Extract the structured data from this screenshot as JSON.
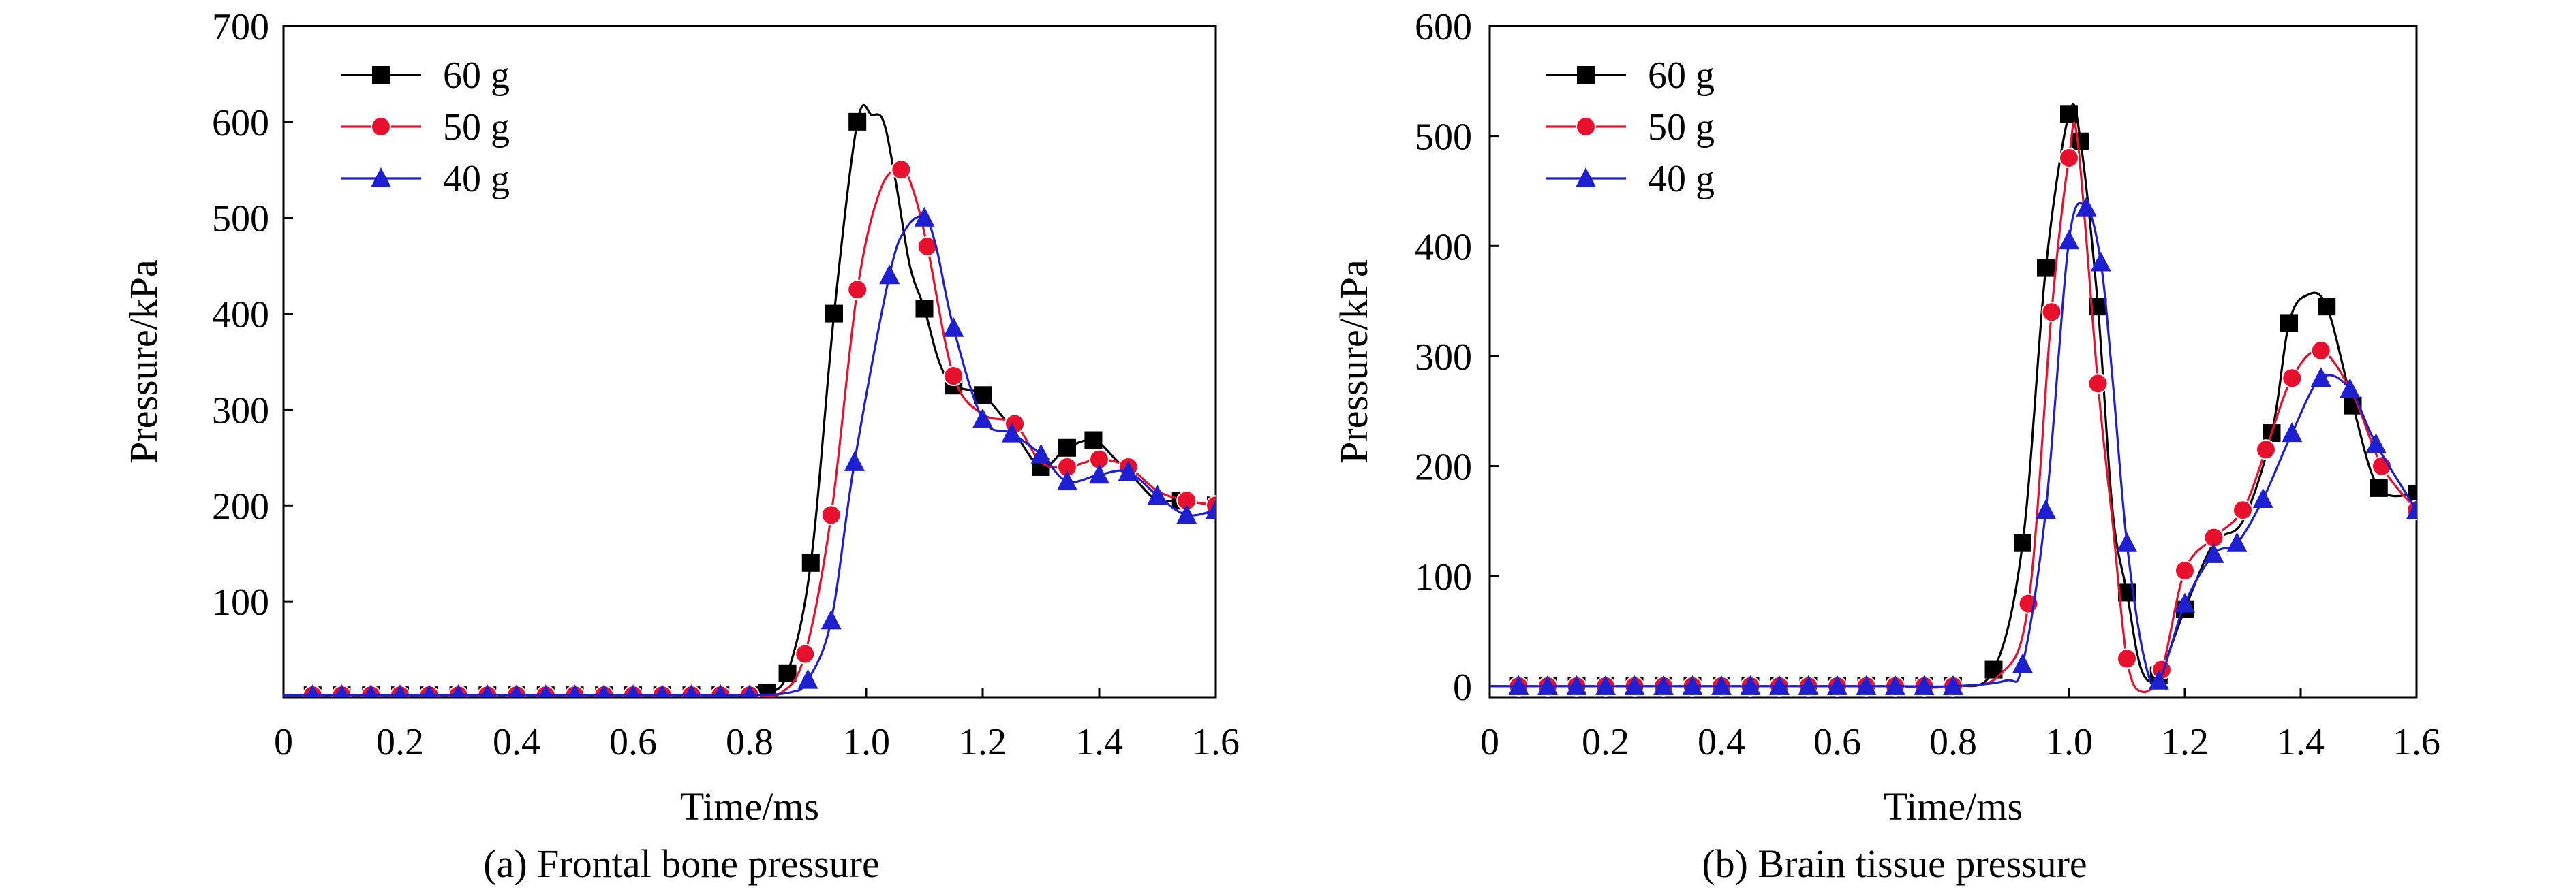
{
  "figure": {
    "captions": [
      "(a) Frontal bone pressure",
      "(b) Brain tissue pressure"
    ]
  },
  "chart_data": [
    {
      "type": "line",
      "caption": "(a) Frontal bone pressure",
      "xlabel": "Time/ms",
      "ylabel": "Pressure/kPa",
      "xlim": [
        0,
        1.6
      ],
      "ylim": [
        0,
        700
      ],
      "xticks": [
        "0",
        "0.2",
        "0.4",
        "0.6",
        "0.8",
        "1.0",
        "1.2",
        "1.4",
        "1.6"
      ],
      "yticks": [
        "100",
        "200",
        "300",
        "400",
        "500",
        "600",
        "700"
      ],
      "grid": false,
      "legend_position": "top-left",
      "series": [
        {
          "name": "60 g",
          "color": "#000000",
          "marker": "square",
          "x": [
            0.0,
            0.1,
            0.2,
            0.3,
            0.4,
            0.5,
            0.6,
            0.7,
            0.8,
            0.83,
            0.865,
            0.905,
            0.945,
            0.985,
            1.01,
            1.03,
            1.05,
            1.075,
            1.1,
            1.125,
            1.15,
            1.2,
            1.25,
            1.3,
            1.345,
            1.39,
            1.425,
            1.465,
            1.5,
            1.54,
            1.6
          ],
          "y": [
            2,
            2,
            2,
            2,
            2,
            2,
            2,
            2,
            2,
            5,
            25,
            140,
            400,
            600,
            607,
            600,
            540,
            450,
            405,
            350,
            325,
            315,
            280,
            240,
            260,
            268,
            250,
            225,
            205,
            205,
            200
          ],
          "marker_x": [
            0.83,
            0.865,
            0.905,
            0.945,
            0.985,
            1.1,
            1.15,
            1.2,
            1.3,
            1.345,
            1.39,
            1.54,
            1.6
          ],
          "marker_y": [
            5,
            25,
            140,
            400,
            600,
            405,
            325,
            315,
            240,
            260,
            268,
            205,
            200
          ]
        },
        {
          "name": "50 g",
          "color": "#e8112d",
          "marker": "circle",
          "x": [
            0.0,
            0.1,
            0.2,
            0.3,
            0.4,
            0.5,
            0.6,
            0.7,
            0.8,
            0.855,
            0.895,
            0.94,
            0.985,
            1.025,
            1.06,
            1.08,
            1.105,
            1.15,
            1.2,
            1.255,
            1.3,
            1.345,
            1.4,
            1.45,
            1.5,
            1.55,
            1.6
          ],
          "y": [
            2,
            2,
            2,
            2,
            2,
            2,
            2,
            2,
            2,
            5,
            45,
            190,
            425,
            530,
            550,
            530,
            470,
            335,
            295,
            285,
            245,
            240,
            248,
            240,
            215,
            205,
            200
          ],
          "marker_x": [
            0.895,
            0.94,
            0.985,
            1.06,
            1.105,
            1.15,
            1.255,
            1.345,
            1.4,
            1.45,
            1.55,
            1.6
          ],
          "marker_y": [
            45,
            190,
            425,
            550,
            470,
            335,
            285,
            240,
            248,
            240,
            205,
            200
          ]
        },
        {
          "name": "40 g",
          "color": "#1f1fd2",
          "marker": "triangle",
          "x": [
            0.0,
            0.1,
            0.2,
            0.3,
            0.4,
            0.5,
            0.6,
            0.7,
            0.8,
            0.87,
            0.9,
            0.94,
            0.98,
            1.04,
            1.07,
            1.1,
            1.12,
            1.15,
            1.2,
            1.25,
            1.3,
            1.345,
            1.4,
            1.45,
            1.5,
            1.55,
            1.6
          ],
          "y": [
            2,
            2,
            2,
            2,
            2,
            2,
            2,
            2,
            2,
            5,
            18,
            80,
            245,
            440,
            490,
            500,
            470,
            385,
            290,
            275,
            253,
            225,
            232,
            235,
            210,
            190,
            195
          ],
          "marker_x": [
            0.9,
            0.94,
            0.98,
            1.04,
            1.1,
            1.15,
            1.2,
            1.25,
            1.3,
            1.345,
            1.4,
            1.45,
            1.5,
            1.55,
            1.6
          ],
          "marker_y": [
            18,
            80,
            245,
            440,
            500,
            385,
            290,
            275,
            253,
            225,
            232,
            235,
            210,
            190,
            195
          ]
        }
      ]
    },
    {
      "type": "line",
      "caption": "(b) Brain tissue pressure",
      "xlabel": "Time/ms",
      "ylabel": "Pressure/kPa",
      "xlim": [
        0,
        1.6
      ],
      "ylim": [
        -10,
        600
      ],
      "xticks": [
        "0",
        "0.2",
        "0.4",
        "0.6",
        "0.8",
        "1.0",
        "1.2",
        "1.4",
        "1.6"
      ],
      "yticks": [
        "0",
        "100",
        "200",
        "300",
        "400",
        "500",
        "600"
      ],
      "grid": false,
      "legend_position": "top-left",
      "series": [
        {
          "name": "60 g",
          "color": "#000000",
          "marker": "square",
          "x": [
            0.0,
            0.1,
            0.2,
            0.3,
            0.4,
            0.5,
            0.6,
            0.7,
            0.8,
            0.87,
            0.92,
            0.96,
            1.0,
            1.02,
            1.05,
            1.075,
            1.1,
            1.125,
            1.155,
            1.2,
            1.25,
            1.3,
            1.35,
            1.38,
            1.41,
            1.445,
            1.49,
            1.535,
            1.6
          ],
          "y": [
            0,
            0,
            0,
            0,
            0,
            0,
            0,
            0,
            0,
            15,
            130,
            380,
            520,
            495,
            345,
            160,
            85,
            15,
            10,
            70,
            130,
            150,
            230,
            330,
            355,
            345,
            255,
            180,
            175
          ],
          "marker_x": [
            0.87,
            0.92,
            0.96,
            1.0,
            1.02,
            1.05,
            1.1,
            1.155,
            1.2,
            1.35,
            1.38,
            1.445,
            1.49,
            1.535,
            1.6
          ],
          "marker_y": [
            15,
            130,
            380,
            520,
            495,
            345,
            85,
            10,
            70,
            230,
            330,
            345,
            255,
            180,
            175
          ]
        },
        {
          "name": "50 g",
          "color": "#e8112d",
          "marker": "circle",
          "x": [
            0.0,
            0.1,
            0.2,
            0.3,
            0.4,
            0.5,
            0.6,
            0.7,
            0.8,
            0.88,
            0.93,
            0.97,
            1.0,
            1.015,
            1.05,
            1.075,
            1.1,
            1.125,
            1.16,
            1.2,
            1.25,
            1.3,
            1.34,
            1.385,
            1.435,
            1.49,
            1.54,
            1.6
          ],
          "y": [
            0,
            0,
            0,
            0,
            0,
            0,
            0,
            0,
            0,
            10,
            75,
            340,
            480,
            495,
            275,
            150,
            25,
            -5,
            15,
            105,
            135,
            160,
            215,
            280,
            305,
            265,
            200,
            160
          ],
          "marker_x": [
            0.93,
            0.97,
            1.0,
            1.05,
            1.1,
            1.16,
            1.2,
            1.25,
            1.3,
            1.34,
            1.385,
            1.435,
            1.54,
            1.6
          ],
          "marker_y": [
            75,
            340,
            480,
            275,
            25,
            15,
            105,
            135,
            160,
            215,
            280,
            305,
            200,
            160
          ]
        },
        {
          "name": "40 g",
          "color": "#1f1fd2",
          "marker": "triangle",
          "x": [
            0.0,
            0.1,
            0.2,
            0.3,
            0.4,
            0.5,
            0.6,
            0.7,
            0.8,
            0.89,
            0.92,
            0.96,
            1.0,
            1.03,
            1.055,
            1.075,
            1.1,
            1.13,
            1.155,
            1.2,
            1.25,
            1.29,
            1.335,
            1.385,
            1.435,
            1.485,
            1.53,
            1.6
          ],
          "y": [
            0,
            0,
            0,
            0,
            0,
            0,
            0,
            0,
            0,
            5,
            20,
            160,
            405,
            435,
            385,
            280,
            130,
            25,
            5,
            75,
            120,
            130,
            170,
            230,
            280,
            270,
            220,
            160
          ],
          "marker_x": [
            0.92,
            0.96,
            1.0,
            1.03,
            1.055,
            1.1,
            1.155,
            1.2,
            1.25,
            1.29,
            1.335,
            1.385,
            1.435,
            1.485,
            1.53,
            1.6
          ],
          "marker_y": [
            20,
            160,
            405,
            435,
            385,
            130,
            5,
            75,
            120,
            130,
            170,
            230,
            280,
            270,
            220,
            160
          ]
        }
      ]
    }
  ]
}
